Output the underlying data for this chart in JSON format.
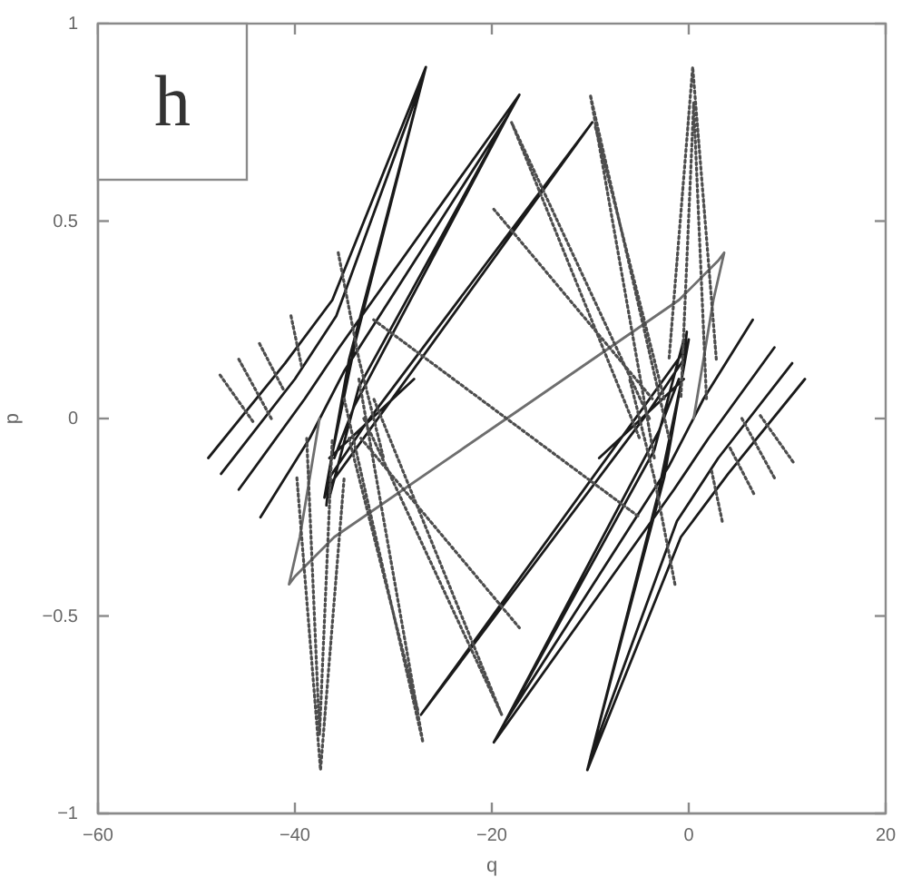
{
  "chart_data": {
    "type": "line",
    "xlabel": "q",
    "ylabel": "p",
    "annotations": [
      "h"
    ],
    "xlim": [
      -60,
      20
    ],
    "xticks": [
      {
        "value": -60,
        "label": "−60"
      },
      {
        "value": -40,
        "label": "−40"
      },
      {
        "value": -20,
        "label": "−20"
      },
      0,
      20
    ],
    "ylim": [
      -1,
      1
    ],
    "yticks": [
      {
        "value": -1,
        "label": "−1"
      },
      {
        "value": -0.5,
        "label": "−0.5"
      },
      0,
      0.5,
      1
    ],
    "grid": false,
    "marker": "none",
    "series": [
      {
        "color": "#1a1a1a",
        "line_style": "solid",
        "x": [
          -48.8,
          -41,
          -36.2,
          -26.7,
          -33.8,
          -36.3,
          -36.8,
          null,
          11.8,
          4,
          -0.8,
          -10.3,
          -3.2,
          -0.7,
          -0.2,
          null,
          -47.5,
          -40,
          -35.8,
          -27.0,
          -34.5,
          -37.0,
          null,
          10.5,
          3,
          -1.2,
          -10,
          -2.5,
          0,
          null,
          -45.7,
          -39,
          -35.5,
          -17.2,
          -33.5,
          -36.5,
          null,
          8.7,
          2,
          -1.5,
          -19.8,
          -3.5,
          -0.5,
          null,
          -43.5,
          -38.5,
          -35,
          -18.3,
          -34,
          -36,
          null,
          6.5,
          1.5,
          -2,
          -18.7,
          -3,
          -1,
          null,
          -36.8,
          -9.8,
          -33,
          -36.5,
          null,
          -0.2,
          -27.2,
          -4,
          -0.5,
          null,
          -36.5,
          -27.9,
          null,
          -0.5,
          -9.1
        ],
        "values": [
          -0.1,
          0.14,
          0.3,
          0.89,
          0.2,
          -0.1,
          -0.22,
          null,
          0.1,
          -0.14,
          -0.3,
          -0.89,
          -0.2,
          0.1,
          0.22,
          null,
          -0.14,
          0.1,
          0.26,
          0.86,
          0.15,
          -0.2,
          null,
          0.14,
          -0.1,
          -0.26,
          -0.86,
          -0.15,
          0.2,
          null,
          -0.18,
          0.05,
          0.18,
          0.82,
          0.08,
          -0.2,
          null,
          0.18,
          -0.05,
          -0.18,
          -0.82,
          -0.08,
          0.2,
          null,
          -0.25,
          -0.05,
          0.12,
          0.77,
          0.03,
          -0.1,
          null,
          0.25,
          0.05,
          -0.12,
          -0.77,
          -0.03,
          0.1,
          null,
          -0.18,
          0.75,
          -0.02,
          -0.15,
          null,
          0.18,
          -0.75,
          0.02,
          0.15,
          null,
          -0.1,
          0.1,
          null,
          0.1,
          -0.1
        ]
      },
      {
        "color": "#6e6e6e",
        "line_style": "solid",
        "x": [
          -37.5,
          -39.5,
          -40.6,
          -40,
          -36,
          -18.5,
          -1,
          3,
          3.6,
          2.5,
          0.5
        ],
        "values": [
          0,
          -0.3,
          -0.42,
          -0.4,
          -0.3,
          0,
          0.3,
          0.4,
          0.42,
          0.3,
          0
        ]
      },
      {
        "color": "#4d4d4d",
        "line_style": "dotted",
        "x": [
          -39.8,
          -37.4,
          -35.0,
          null,
          -38.8,
          -37.5,
          -36.2,
          null,
          2.8,
          0.4,
          -2,
          null,
          1.8,
          0.5,
          -0.8,
          null,
          -47.6,
          -44.2,
          null,
          -45.7,
          -42.4,
          null,
          -43.6,
          -41.1,
          null,
          -40.4,
          -39.3,
          null,
          10.6,
          7.2,
          null,
          8.7,
          5.4,
          null,
          6.6,
          4.1,
          null,
          3.4,
          2.3,
          null,
          -35.6,
          -33.5,
          -31,
          null,
          -1.4,
          -3.5,
          -6,
          null,
          -33.3,
          -17.2,
          null,
          -3.7,
          -19.8,
          null,
          -32,
          -5,
          null,
          -35,
          -27,
          -33.5,
          null,
          -34.5,
          -27.5,
          null,
          -2,
          -10,
          -3.5,
          null,
          -2.5,
          -9.5,
          null,
          -33,
          -19,
          -32,
          null,
          -4,
          -18,
          -5
        ],
        "values": [
          -0.15,
          -0.89,
          -0.15,
          null,
          -0.05,
          -0.8,
          -0.05,
          null,
          0.15,
          0.89,
          0.15,
          null,
          0.05,
          0.8,
          0.05,
          null,
          0.11,
          -0.01,
          null,
          0.15,
          0.0,
          null,
          0.19,
          0.07,
          null,
          0.26,
          0.13,
          null,
          -0.11,
          0.01,
          null,
          -0.15,
          0.0,
          null,
          -0.19,
          -0.07,
          null,
          -0.26,
          -0.13,
          null,
          0.42,
          0.15,
          -0.1,
          null,
          -0.42,
          -0.15,
          0.1,
          null,
          -0.05,
          -0.53,
          null,
          0.05,
          0.53,
          null,
          0.25,
          -0.25,
          null,
          0.05,
          -0.82,
          0.1,
          null,
          -0.05,
          -0.74,
          null,
          -0.05,
          0.82,
          -0.1,
          null,
          0.05,
          0.74,
          null,
          0,
          -0.75,
          0.05,
          null,
          0,
          0.75,
          -0.05
        ]
      }
    ]
  }
}
